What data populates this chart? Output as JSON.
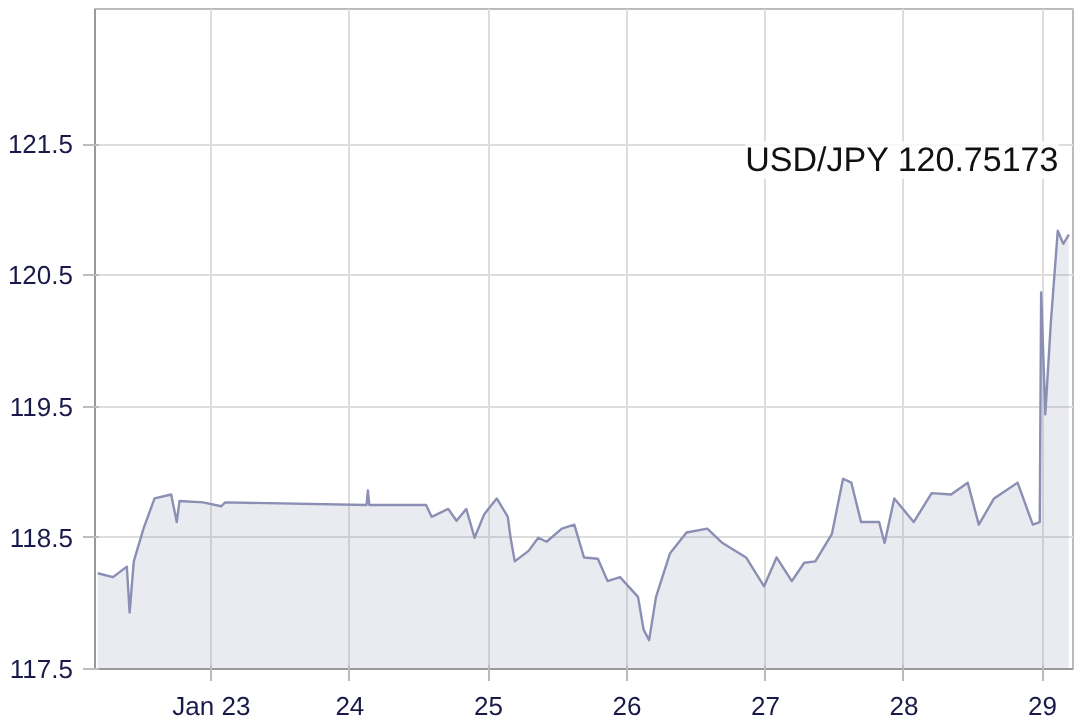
{
  "chart_data": {
    "type": "area",
    "x": [
      22.18,
      22.29,
      22.39,
      22.41,
      22.44,
      22.51,
      22.59,
      22.71,
      22.75,
      22.77,
      22.94,
      23.07,
      23.1,
      24.12,
      24.13,
      24.14,
      24.55,
      24.59,
      24.71,
      24.77,
      24.84,
      24.9,
      24.97,
      25.06,
      25.14,
      25.16,
      25.19,
      25.29,
      25.36,
      25.42,
      25.53,
      25.62,
      25.69,
      25.79,
      25.86,
      25.95,
      26.08,
      26.12,
      26.16,
      26.21,
      26.31,
      26.43,
      26.58,
      26.69,
      26.86,
      26.99,
      27.08,
      27.19,
      27.28,
      27.36,
      27.48,
      27.56,
      27.62,
      27.69,
      27.82,
      27.86,
      27.93,
      28.07,
      28.2,
      28.34,
      28.46,
      28.54,
      28.65,
      28.82,
      28.93,
      28.98,
      28.99,
      29.02,
      29.06,
      29.11,
      29.15,
      29.19
    ],
    "series": [
      {
        "color": "#8a8fb3",
        "values": [
          118.23,
          118.2,
          118.28,
          117.93,
          118.32,
          118.57,
          118.8,
          118.83,
          118.62,
          118.78,
          118.77,
          118.74,
          118.77,
          118.75,
          118.86,
          118.75,
          118.75,
          118.66,
          118.72,
          118.63,
          118.72,
          118.5,
          118.68,
          118.8,
          118.66,
          118.5,
          118.32,
          118.4,
          118.5,
          118.47,
          118.57,
          118.6,
          118.35,
          118.34,
          118.17,
          118.2,
          118.05,
          117.8,
          117.72,
          118.05,
          118.38,
          118.54,
          118.57,
          118.46,
          118.35,
          118.13,
          118.35,
          118.17,
          118.31,
          118.32,
          118.53,
          118.95,
          118.92,
          118.62,
          118.62,
          118.46,
          118.8,
          118.62,
          118.84,
          118.83,
          118.92,
          118.6,
          118.8,
          118.92,
          118.6,
          118.62,
          120.37,
          119.44,
          120.14,
          120.84,
          120.74,
          120.81
        ]
      }
    ],
    "annotations": [
      "USD/JPY 120.75173"
    ],
    "xlim": [
      22.16,
      29.22
    ],
    "xticks": [
      {
        "value": 23,
        "label": "Jan 23"
      },
      {
        "value": 24,
        "label": "24"
      },
      {
        "value": 25,
        "label": "25"
      },
      {
        "value": 26,
        "label": "26"
      },
      {
        "value": 27,
        "label": "27"
      },
      {
        "value": 28,
        "label": "28"
      },
      {
        "value": 29,
        "label": "29"
      }
    ],
    "ylim": [
      117.5,
      122.53
    ],
    "yticks": [
      117.5,
      118.5,
      119.5,
      120.5,
      121.5
    ],
    "grid": true
  }
}
